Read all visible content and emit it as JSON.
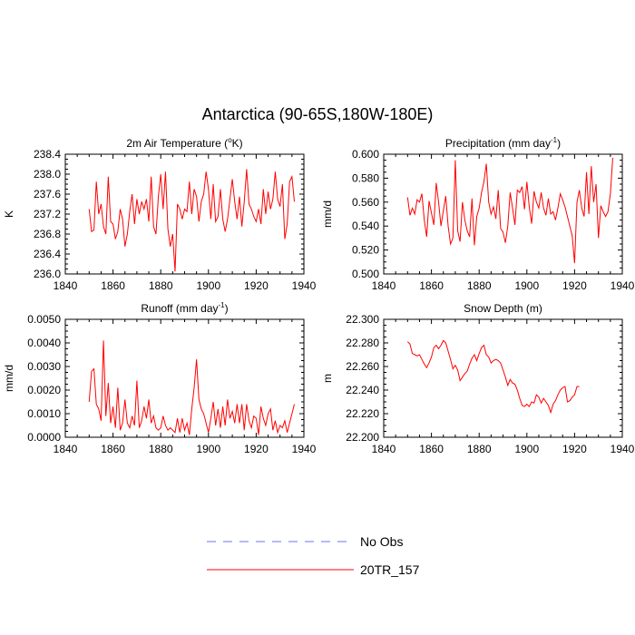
{
  "title": "Antarctica (90-65S,180W-180E)",
  "legend": {
    "items": [
      {
        "label": "No Obs",
        "color": "#6f6fff",
        "dash": true
      },
      {
        "label": "20TR_157",
        "color": "#ff0000",
        "dash": false
      }
    ]
  },
  "chart_data": [
    {
      "type": "line",
      "title_main": "2m Air Temperature (",
      "title_sup": "o",
      "title_tail": "K)",
      "ylabel": "K",
      "xlim": [
        1840,
        1940
      ],
      "xticks": [
        1840,
        1860,
        1880,
        1900,
        1920,
        1940
      ],
      "ylim": [
        236.0,
        238.4
      ],
      "yticks": [
        "236.0",
        "236.4",
        "236.8",
        "237.2",
        "237.6",
        "238.0",
        "238.4"
      ],
      "series": [
        {
          "name": "20TR_157",
          "color": "#ff0000",
          "start": 1850,
          "values": [
            237.3,
            236.85,
            236.88,
            237.85,
            237.2,
            237.4,
            236.95,
            236.8,
            237.95,
            237.05,
            237.0,
            236.7,
            236.85,
            237.3,
            237.1,
            236.55,
            236.8,
            237.25,
            237.6,
            237.0,
            237.5,
            237.2,
            237.45,
            237.3,
            237.5,
            237.05,
            237.95,
            236.95,
            236.8,
            237.55,
            238.0,
            237.3,
            238.05,
            236.9,
            236.55,
            236.8,
            236.05,
            237.4,
            237.3,
            237.1,
            237.3,
            237.25,
            237.85,
            237.2,
            237.7,
            237.55,
            237.05,
            237.45,
            237.6,
            238.05,
            237.7,
            237.1,
            237.8,
            237.05,
            237.15,
            237.7,
            237.1,
            236.85,
            237.1,
            237.5,
            237.9,
            237.45,
            237.1,
            237.55,
            236.95,
            237.45,
            238.1,
            237.4,
            237.3,
            237.15,
            237.05,
            237.3,
            237.0,
            237.7,
            237.2,
            237.65,
            237.3,
            237.5,
            238.05,
            237.5,
            237.35,
            237.8,
            236.7,
            237.0,
            237.85,
            237.95,
            237.45
          ]
        }
      ]
    },
    {
      "type": "line",
      "title_main": "Precipitation (mm day",
      "title_sup": "-1",
      "title_tail": ")",
      "ylabel": "mm/d",
      "xlim": [
        1840,
        1940
      ],
      "xticks": [
        1840,
        1860,
        1880,
        1900,
        1920,
        1940
      ],
      "ylim": [
        0.5,
        0.6
      ],
      "yticks": [
        "0.500",
        "0.520",
        "0.540",
        "0.560",
        "0.580",
        "0.600"
      ],
      "series": [
        {
          "name": "20TR_157",
          "color": "#ff0000",
          "start": 1850,
          "values": [
            0.564,
            0.549,
            0.555,
            0.55,
            0.562,
            0.56,
            0.567,
            0.545,
            0.531,
            0.561,
            0.551,
            0.541,
            0.576,
            0.56,
            0.54,
            0.553,
            0.565,
            0.54,
            0.525,
            0.53,
            0.595,
            0.536,
            0.527,
            0.56,
            0.545,
            0.536,
            0.531,
            0.563,
            0.524,
            0.548,
            0.555,
            0.568,
            0.577,
            0.592,
            0.56,
            0.55,
            0.556,
            0.546,
            0.57,
            0.538,
            0.535,
            0.526,
            0.54,
            0.568,
            0.555,
            0.541,
            0.57,
            0.568,
            0.573,
            0.554,
            0.577,
            0.556,
            0.542,
            0.569,
            0.56,
            0.555,
            0.568,
            0.555,
            0.549,
            0.563,
            0.55,
            0.552,
            0.545,
            0.555,
            0.567,
            0.562,
            0.556,
            0.548,
            0.54,
            0.532,
            0.509,
            0.56,
            0.57,
            0.555,
            0.548,
            0.585,
            0.55,
            0.59,
            0.56,
            0.575,
            0.53,
            0.557,
            0.552,
            0.548,
            0.552,
            0.567,
            0.597
          ]
        }
      ]
    },
    {
      "type": "line",
      "title_main": "Runoff (mm day",
      "title_sup": "-1",
      "title_tail": ")",
      "ylabel": "mm/d",
      "xlim": [
        1840,
        1940
      ],
      "xticks": [
        1840,
        1860,
        1880,
        1900,
        1920,
        1940
      ],
      "ylim": [
        0.0,
        0.005
      ],
      "yticks": [
        "0.0000",
        "0.0010",
        "0.0020",
        "0.0030",
        "0.0040",
        "0.0050"
      ],
      "series": [
        {
          "name": "20TR_157",
          "color": "#ff0000",
          "start": 1850,
          "values": [
            0.0015,
            0.0028,
            0.0029,
            0.0014,
            0.0012,
            0.0007,
            0.0041,
            0.0009,
            0.0023,
            0.0006,
            0.0013,
            0.0004,
            0.0021,
            0.0003,
            0.0006,
            0.0016,
            0.0006,
            0.0004,
            0.0009,
            0.0005,
            0.0024,
            0.0004,
            0.0007,
            0.0013,
            0.0008,
            0.0016,
            0.0006,
            0.0009,
            0.0004,
            0.0003,
            0.0004,
            0.0009,
            0.0005,
            0.0003,
            0.0004,
            0.0003,
            0.0002,
            0.0008,
            0.0002,
            0.0008,
            0.0003,
            0.0006,
            0.0001,
            0.0012,
            0.0021,
            0.0033,
            0.0016,
            0.0012,
            0.001,
            0.0006,
            0.0002,
            0.0008,
            0.0015,
            0.0005,
            0.0012,
            0.0004,
            0.0013,
            0.0005,
            0.0016,
            0.0008,
            0.0011,
            0.0006,
            0.0014,
            0.0006,
            0.0014,
            0.0003,
            0.0014,
            0.0007,
            0.0004,
            0.0009,
            0.0008,
            0.0001,
            0.0013,
            0.0008,
            0.0005,
            0.001,
            0.0012,
            0.0003,
            0.0007,
            0.0002,
            0.0005,
            0.0004,
            0.0007,
            0.0002,
            0.0006,
            0.001,
            0.0014
          ]
        }
      ]
    },
    {
      "type": "line",
      "title_main": "Snow Depth (m)",
      "title_sup": "",
      "title_tail": "",
      "ylabel": "m",
      "xlim": [
        1840,
        1940
      ],
      "xticks": [
        1840,
        1860,
        1880,
        1900,
        1920,
        1940
      ],
      "ylim": [
        22.2,
        22.3
      ],
      "yticks": [
        "22.200",
        "22.220",
        "22.240",
        "22.260",
        "22.280",
        "22.300"
      ],
      "series": [
        {
          "name": "20TR_157",
          "color": "#ff0000",
          "start": 1850,
          "values": [
            22.281,
            22.279,
            22.271,
            22.27,
            22.269,
            22.27,
            22.266,
            22.262,
            22.259,
            22.263,
            22.268,
            22.276,
            22.278,
            22.275,
            22.278,
            22.282,
            22.28,
            22.273,
            22.266,
            22.258,
            22.261,
            22.257,
            22.248,
            22.251,
            22.254,
            22.256,
            22.262,
            22.267,
            22.27,
            22.265,
            22.271,
            22.276,
            22.278,
            22.27,
            22.268,
            22.263,
            22.265,
            22.266,
            22.265,
            22.263,
            22.257,
            22.251,
            22.244,
            22.249,
            22.246,
            22.245,
            22.24,
            22.233,
            22.227,
            22.226,
            22.228,
            22.226,
            22.23,
            22.229,
            22.236,
            22.234,
            22.229,
            22.233,
            22.23,
            22.227,
            22.221,
            22.228,
            22.231,
            22.236,
            22.24,
            22.242,
            22.243,
            22.23,
            22.231,
            22.234,
            22.236,
            22.243,
            22.243
          ]
        }
      ]
    }
  ]
}
